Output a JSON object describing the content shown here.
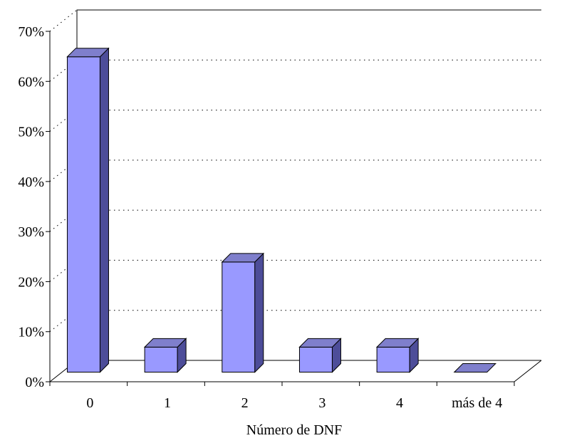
{
  "chart_data": {
    "type": "bar",
    "title": "",
    "xlabel": "Número de DNF",
    "ylabel": "",
    "categories": [
      "0",
      "1",
      "2",
      "3",
      "4",
      "más de 4"
    ],
    "series": [
      {
        "values": [
          63,
          5,
          22,
          5,
          5,
          0
        ]
      }
    ],
    "ylim": [
      0,
      70
    ],
    "yticks": [
      "0%",
      "10%",
      "20%",
      "30%",
      "40%",
      "50%",
      "60%",
      "70%"
    ],
    "grid": true,
    "style": "3d-column",
    "colors": {
      "bar_front": "#9999ff",
      "bar_side": "#4d4d99",
      "bar_top": "#7f7fcc",
      "edge": "#000000"
    }
  }
}
